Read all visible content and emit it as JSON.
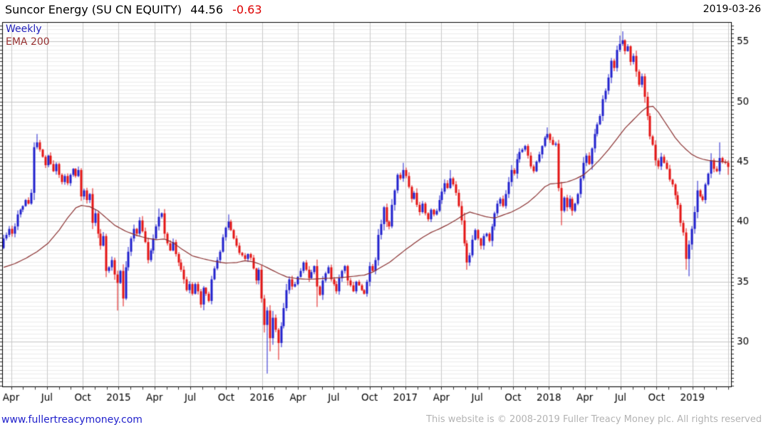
{
  "header": {
    "title": "Suncor Energy (SU CN EQUITY)",
    "last_price": "44.56",
    "change": "-0.63",
    "date": "2019-03-26"
  },
  "legend": {
    "series1": "Weekly",
    "series2": "EMA 200"
  },
  "footer": {
    "site": "www.fullertreacymoney.com",
    "copyright": "This website is © 2008-2019 Fuller Treacy Money plc. All rights reserved"
  },
  "colors": {
    "up_candle": "#2121cd",
    "down_candle": "#e41414",
    "ema_line": "#8b3232",
    "title_text": "#000000",
    "change_text": "#dd0000",
    "legend_weekly": "#2222bb",
    "legend_ema": "#993333",
    "footer_link": "#2222cc",
    "footer_copy": "#b3b3b3",
    "grid_minor": "#ededed",
    "grid_major": "#c3c3c3",
    "grid_vertical": "#c9c9c9",
    "axis": "#000000",
    "tick": "#333333",
    "label_text": "#000000",
    "background": "#ffffff"
  },
  "chart_data": {
    "type": "candlestick",
    "timeframe": "weekly",
    "title": "Suncor Energy (SU CN EQUITY)",
    "legend_entries": [
      "Weekly",
      "EMA 200"
    ],
    "grid": "on",
    "y_axis": {
      "side": "right",
      "top_price": 56.62,
      "bottom_price": 26.25,
      "tick_labels": [
        30,
        35,
        40,
        45,
        50,
        55
      ],
      "minor_step": 0.3333
    },
    "x_axis": {
      "quarter_labels": [
        "Apr",
        "Jul",
        "Oct",
        "2015",
        "Apr",
        "Jul",
        "Oct",
        "2016",
        "Apr",
        "Jul",
        "Oct",
        "2017",
        "Apr",
        "Jul",
        "Oct",
        "2018",
        "Apr",
        "Jul",
        "Oct",
        "2019"
      ],
      "weeks_total": 262,
      "months_total": 61
    },
    "first_open": 37.8,
    "closes": [
      38.6,
      38.9,
      39.4,
      39.0,
      39.6,
      40.6,
      41.0,
      41.3,
      41.8,
      41.5,
      42.4,
      46.2,
      46.6,
      46.0,
      45.4,
      44.7,
      45.5,
      44.8,
      44.2,
      44.8,
      43.9,
      43.3,
      43.8,
      43.2,
      43.9,
      44.4,
      43.8,
      44.3,
      42.1,
      42.6,
      41.8,
      42.3,
      39.9,
      40.7,
      39.0,
      38.0,
      38.8,
      35.9,
      36.2,
      36.8,
      35.6,
      34.9,
      35.9,
      33.6,
      36.2,
      37.5,
      38.6,
      39.4,
      39.0,
      40.1,
      39.2,
      38.3,
      36.8,
      37.6,
      38.6,
      39.6,
      40.4,
      40.7,
      39.0,
      38.2,
      37.6,
      38.3,
      37.3,
      36.6,
      36.0,
      35.2,
      34.3,
      34.8,
      34.0,
      34.8,
      34.2,
      33.1,
      34.5,
      34.0,
      33.4,
      35.2,
      36.1,
      36.8,
      37.5,
      38.7,
      39.5,
      40.0,
      39.3,
      38.6,
      38.0,
      37.4,
      37.2,
      36.9,
      37.3,
      37.0,
      36.1,
      35.1,
      36.0,
      33.6,
      31.4,
      32.6,
      30.3,
      32.0,
      31.0,
      29.9,
      31.3,
      32.8,
      34.3,
      35.2,
      34.6,
      34.8,
      35.4,
      35.9,
      36.6,
      36.0,
      35.3,
      35.8,
      36.3,
      34.6,
      33.9,
      35.1,
      35.7,
      36.2,
      35.2,
      34.8,
      34.2,
      35.3,
      35.9,
      36.3,
      35.1,
      34.7,
      34.2,
      35.0,
      34.7,
      34.3,
      34.0,
      35.0,
      36.3,
      35.9,
      36.8,
      38.9,
      39.8,
      41.2,
      40.0,
      39.6,
      41.4,
      42.6,
      43.9,
      43.6,
      44.3,
      43.8,
      42.9,
      41.9,
      42.4,
      41.4,
      40.8,
      41.5,
      40.7,
      40.2,
      41.0,
      40.6,
      40.9,
      41.8,
      42.5,
      43.2,
      42.8,
      43.6,
      43.1,
      42.4,
      41.3,
      40.1,
      38.2,
      36.6,
      37.2,
      38.5,
      39.3,
      38.6,
      38.0,
      38.8,
      39.0,
      38.4,
      39.6,
      40.7,
      41.5,
      41.9,
      41.3,
      42.3,
      43.3,
      44.3,
      44.0,
      45.2,
      45.8,
      46.0,
      46.3,
      45.5,
      44.6,
      44.2,
      45.0,
      45.6,
      46.3,
      47.0,
      47.3,
      46.8,
      46.4,
      46.5,
      42.8,
      40.9,
      42.0,
      41.2,
      41.9,
      40.9,
      41.5,
      42.3,
      43.6,
      44.9,
      45.5,
      44.8,
      46.1,
      47.3,
      48.1,
      48.8,
      50.2,
      50.9,
      52.0,
      53.4,
      52.8,
      54.3,
      54.8,
      55.1,
      54.2,
      54.6,
      53.3,
      53.8,
      52.5,
      51.4,
      52.1,
      50.4,
      48.8,
      47.1,
      46.4,
      45.1,
      44.6,
      45.4,
      44.9,
      44.4,
      43.5,
      43.1,
      42.2,
      41.4,
      39.9,
      39.1,
      36.9,
      38.1,
      39.4,
      40.8,
      42.6,
      42.1,
      41.8,
      43.1,
      44.0,
      45.1,
      44.4,
      44.2,
      45.3,
      45.0,
      44.9,
      44.56
    ],
    "wick_overrides": {
      "11": {
        "high": 46.6
      },
      "12": {
        "high": 47.3
      },
      "41": {
        "low": 32.6
      },
      "56": {
        "high": 41.1
      },
      "81": {
        "high": 40.6
      },
      "95": {
        "low": 27.35
      },
      "96": {
        "low": 29.2
      },
      "99": {
        "low": 28.5
      },
      "113": {
        "low": 32.9
      },
      "144": {
        "high": 44.9
      },
      "161": {
        "high": 44.3
      },
      "167": {
        "low": 36.0
      },
      "196": {
        "high": 47.85
      },
      "201": {
        "low": 39.7
      },
      "222": {
        "high": 55.5
      },
      "223": {
        "high": 55.85
      },
      "246": {
        "low": 36.0
      },
      "247": {
        "low": 35.45
      },
      "250": {
        "high": 43.4
      },
      "255": {
        "high": 45.7
      },
      "258": {
        "high": 46.6
      },
      "261": {
        "low": 43.9,
        "high": 45.1
      }
    },
    "ema_anchors": [
      [
        0,
        36.2
      ],
      [
        4,
        36.5
      ],
      [
        8,
        36.95
      ],
      [
        12,
        37.5
      ],
      [
        16,
        38.2
      ],
      [
        20,
        39.3
      ],
      [
        23,
        40.3
      ],
      [
        26,
        41.15
      ],
      [
        28,
        41.35
      ],
      [
        31,
        41.25
      ],
      [
        34,
        40.9
      ],
      [
        37,
        40.3
      ],
      [
        40,
        39.7
      ],
      [
        44,
        39.2
      ],
      [
        48,
        38.85
      ],
      [
        52,
        38.6
      ],
      [
        55,
        38.5
      ],
      [
        58,
        38.55
      ],
      [
        61,
        38.25
      ],
      [
        64,
        37.75
      ],
      [
        68,
        37.15
      ],
      [
        72,
        36.9
      ],
      [
        76,
        36.7
      ],
      [
        80,
        36.55
      ],
      [
        84,
        36.6
      ],
      [
        87,
        36.75
      ],
      [
        90,
        36.65
      ],
      [
        93,
        36.4
      ],
      [
        96,
        36.05
      ],
      [
        99,
        35.7
      ],
      [
        102,
        35.4
      ],
      [
        106,
        35.25
      ],
      [
        110,
        35.2
      ],
      [
        114,
        35.25
      ],
      [
        118,
        35.3
      ],
      [
        122,
        35.35
      ],
      [
        126,
        35.45
      ],
      [
        130,
        35.55
      ],
      [
        133,
        35.8
      ],
      [
        136,
        36.2
      ],
      [
        139,
        36.6
      ],
      [
        142,
        37.15
      ],
      [
        145,
        37.7
      ],
      [
        148,
        38.2
      ],
      [
        151,
        38.7
      ],
      [
        154,
        39.1
      ],
      [
        157,
        39.4
      ],
      [
        160,
        39.75
      ],
      [
        163,
        40.15
      ],
      [
        166,
        40.6
      ],
      [
        168,
        40.8
      ],
      [
        171,
        40.6
      ],
      [
        174,
        40.4
      ],
      [
        177,
        40.3
      ],
      [
        180,
        40.55
      ],
      [
        183,
        40.8
      ],
      [
        186,
        41.15
      ],
      [
        189,
        41.6
      ],
      [
        192,
        42.2
      ],
      [
        195,
        42.9
      ],
      [
        197,
        43.15
      ],
      [
        200,
        43.2
      ],
      [
        203,
        43.3
      ],
      [
        206,
        43.55
      ],
      [
        209,
        43.9
      ],
      [
        212,
        44.5
      ],
      [
        215,
        45.2
      ],
      [
        218,
        46.0
      ],
      [
        221,
        46.9
      ],
      [
        224,
        47.8
      ],
      [
        227,
        48.5
      ],
      [
        230,
        49.2
      ],
      [
        232,
        49.55
      ],
      [
        234,
        49.6
      ],
      [
        236,
        49.1
      ],
      [
        238,
        48.4
      ],
      [
        240,
        47.7
      ],
      [
        242,
        47.0
      ],
      [
        244,
        46.45
      ],
      [
        246,
        46.0
      ],
      [
        248,
        45.6
      ],
      [
        250,
        45.35
      ],
      [
        252,
        45.2
      ],
      [
        254,
        45.1
      ],
      [
        256,
        45.05
      ],
      [
        258,
        45.0
      ],
      [
        261,
        44.95
      ]
    ]
  }
}
